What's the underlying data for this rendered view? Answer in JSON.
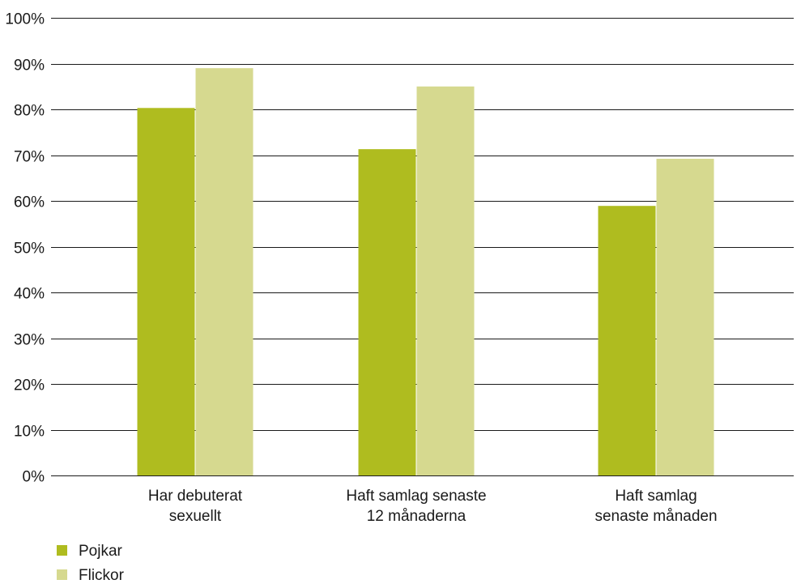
{
  "chart_data": {
    "type": "bar",
    "categories": [
      [
        "Har debuterat",
        "sexuellt"
      ],
      [
        "Haft samlag senaste",
        "12 månaderna"
      ],
      [
        "Haft samlag",
        "senaste månaden"
      ]
    ],
    "series": [
      {
        "name": "Pojkar",
        "values": [
          80.3,
          71.3,
          58.9
        ],
        "color": "#afbc1f"
      },
      {
        "name": "Flickor",
        "values": [
          89.0,
          85.0,
          69.2
        ],
        "color": "#d6d98f"
      }
    ],
    "ylim": [
      0,
      100
    ],
    "yticks": [
      0,
      10,
      20,
      30,
      40,
      50,
      60,
      70,
      80,
      90,
      100
    ],
    "ytick_labels": [
      "0%",
      "10%",
      "20%",
      "30%",
      "40%",
      "50%",
      "60%",
      "70%",
      "80%",
      "90%",
      "100%"
    ],
    "grid": true,
    "legend_position": "bottom-left"
  }
}
